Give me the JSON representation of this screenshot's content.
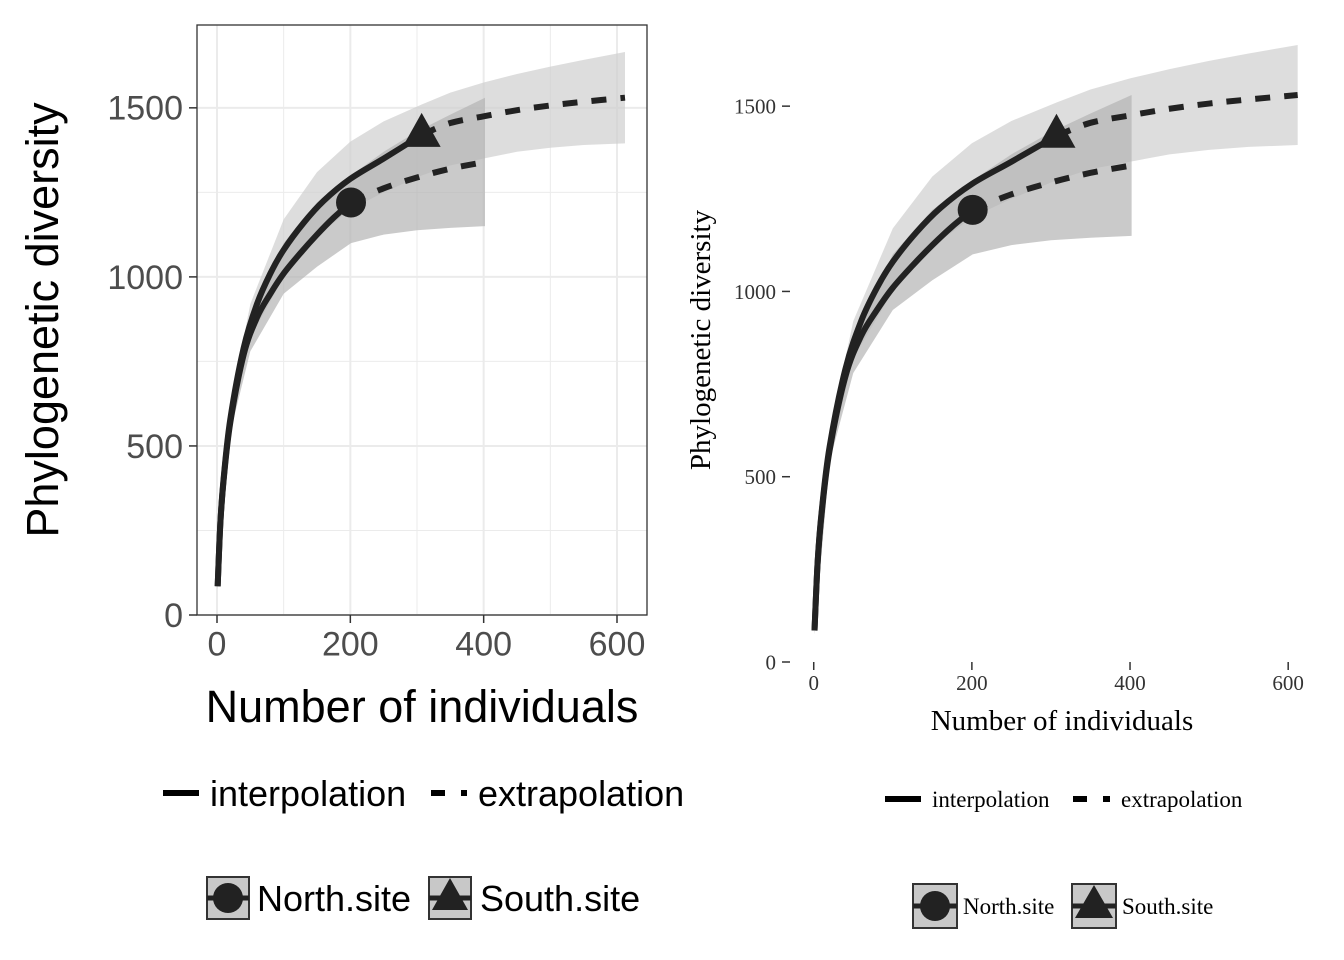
{
  "colors": {
    "line": "#222222",
    "band_light": "#e0e0e0",
    "band_dark": "#bdbdbd",
    "grid": "#ebebeb",
    "axis_text": "#4d4d4d"
  },
  "legend": {
    "method_interp": "interpolation",
    "method_extrap": "extrapolation",
    "site_north": "North.site",
    "site_south": "South.site"
  },
  "chart_data": [
    {
      "type": "line",
      "theme": "bw",
      "xlabel": "Number of individuals",
      "ylabel": "Phylogenetic diversity",
      "xlim": [
        -30,
        645
      ],
      "ylim": [
        0,
        1745
      ],
      "xticks": [
        0,
        200,
        400,
        600
      ],
      "yticks": [
        0,
        500,
        1000,
        1500
      ],
      "xtick_labels": [
        "0",
        "200",
        "400",
        "600"
      ],
      "ytick_labels": [
        "0",
        "500",
        "1000",
        "1500"
      ],
      "grid": true,
      "legend_position": "bottom",
      "series": [
        {
          "name": "North.site",
          "marker": "circle",
          "observed": [
            201,
            1220
          ],
          "interpolation": [
            [
              1,
              85
            ],
            [
              5,
              270
            ],
            [
              10,
              400
            ],
            [
              20,
              570
            ],
            [
              40,
              770
            ],
            [
              60,
              880
            ],
            [
              80,
              950
            ],
            [
              100,
              1010
            ],
            [
              125,
              1070
            ],
            [
              150,
              1125
            ],
            [
              175,
              1175
            ],
            [
              201,
              1220
            ]
          ],
          "extrapolation": [
            [
              201,
              1220
            ],
            [
              250,
              1262
            ],
            [
              300,
              1294
            ],
            [
              350,
              1320
            ],
            [
              402,
              1340
            ]
          ],
          "ci_upper": [
            [
              1,
              95
            ],
            [
              20,
              600
            ],
            [
              50,
              880
            ],
            [
              100,
              1100
            ],
            [
              150,
              1220
            ],
            [
              201,
              1300
            ],
            [
              250,
              1370
            ],
            [
              300,
              1430
            ],
            [
              350,
              1480
            ],
            [
              402,
              1530
            ]
          ],
          "ci_lower": [
            [
              1,
              75
            ],
            [
              20,
              540
            ],
            [
              50,
              780
            ],
            [
              100,
              950
            ],
            [
              150,
              1030
            ],
            [
              201,
              1100
            ],
            [
              250,
              1125
            ],
            [
              300,
              1138
            ],
            [
              350,
              1145
            ],
            [
              402,
              1150
            ]
          ]
        },
        {
          "name": "South.site",
          "marker": "triangle",
          "observed": [
            307,
            1420
          ],
          "interpolation": [
            [
              1,
              85
            ],
            [
              5,
              272
            ],
            [
              10,
              405
            ],
            [
              20,
              580
            ],
            [
              40,
              790
            ],
            [
              60,
              920
            ],
            [
              80,
              1010
            ],
            [
              100,
              1080
            ],
            [
              130,
              1160
            ],
            [
              160,
              1225
            ],
            [
              200,
              1290
            ],
            [
              250,
              1350
            ],
            [
              307,
              1420
            ]
          ],
          "extrapolation": [
            [
              307,
              1420
            ],
            [
              350,
              1455
            ],
            [
              400,
              1475
            ],
            [
              450,
              1493
            ],
            [
              500,
              1507
            ],
            [
              550,
              1518
            ],
            [
              612,
              1530
            ]
          ],
          "ci_upper": [
            [
              1,
              95
            ],
            [
              20,
              620
            ],
            [
              50,
              920
            ],
            [
              100,
              1170
            ],
            [
              150,
              1310
            ],
            [
              200,
              1400
            ],
            [
              250,
              1460
            ],
            [
              307,
              1510
            ],
            [
              350,
              1545
            ],
            [
              400,
              1575
            ],
            [
              450,
              1600
            ],
            [
              500,
              1622
            ],
            [
              550,
              1642
            ],
            [
              612,
              1665
            ]
          ],
          "ci_lower": [
            [
              1,
              75
            ],
            [
              20,
              550
            ],
            [
              50,
              820
            ],
            [
              100,
              1000
            ],
            [
              150,
              1120
            ],
            [
              200,
              1200
            ],
            [
              250,
              1250
            ],
            [
              307,
              1300
            ],
            [
              350,
              1330
            ],
            [
              400,
              1350
            ],
            [
              450,
              1370
            ],
            [
              500,
              1382
            ],
            [
              550,
              1390
            ],
            [
              612,
              1395
            ]
          ]
        }
      ]
    },
    {
      "type": "line",
      "theme": "classic",
      "xlabel": "Number of individuals",
      "ylabel": "Phylogenetic diversity",
      "xlim": [
        -30,
        620
      ],
      "ylim": [
        0,
        1665
      ],
      "xticks": [
        0,
        200,
        400,
        600
      ],
      "yticks": [
        0,
        500,
        1000,
        1500
      ],
      "xtick_labels": [
        "0",
        "200",
        "400",
        "600"
      ],
      "ytick_labels": [
        "0",
        "500",
        "1000",
        "1500"
      ],
      "grid": false,
      "legend_position": "bottom",
      "series": [
        {
          "name": "North.site",
          "marker": "circle",
          "observed": [
            201,
            1220
          ],
          "interpolation": [
            [
              1,
              85
            ],
            [
              5,
              270
            ],
            [
              10,
              400
            ],
            [
              20,
              570
            ],
            [
              40,
              770
            ],
            [
              60,
              880
            ],
            [
              80,
              950
            ],
            [
              100,
              1010
            ],
            [
              125,
              1070
            ],
            [
              150,
              1125
            ],
            [
              175,
              1175
            ],
            [
              201,
              1220
            ]
          ],
          "extrapolation": [
            [
              201,
              1220
            ],
            [
              250,
              1262
            ],
            [
              300,
              1294
            ],
            [
              350,
              1320
            ],
            [
              402,
              1340
            ]
          ],
          "ci_upper": [
            [
              1,
              95
            ],
            [
              20,
              600
            ],
            [
              50,
              880
            ],
            [
              100,
              1100
            ],
            [
              150,
              1220
            ],
            [
              201,
              1300
            ],
            [
              250,
              1370
            ],
            [
              300,
              1430
            ],
            [
              350,
              1480
            ],
            [
              402,
              1530
            ]
          ],
          "ci_lower": [
            [
              1,
              75
            ],
            [
              20,
              540
            ],
            [
              50,
              780
            ],
            [
              100,
              950
            ],
            [
              150,
              1030
            ],
            [
              201,
              1100
            ],
            [
              250,
              1125
            ],
            [
              300,
              1138
            ],
            [
              350,
              1145
            ],
            [
              402,
              1150
            ]
          ]
        },
        {
          "name": "South.site",
          "marker": "triangle",
          "observed": [
            307,
            1420
          ],
          "interpolation": [
            [
              1,
              85
            ],
            [
              5,
              272
            ],
            [
              10,
              405
            ],
            [
              20,
              580
            ],
            [
              40,
              790
            ],
            [
              60,
              920
            ],
            [
              80,
              1010
            ],
            [
              100,
              1080
            ],
            [
              130,
              1160
            ],
            [
              160,
              1225
            ],
            [
              200,
              1290
            ],
            [
              250,
              1350
            ],
            [
              307,
              1420
            ]
          ],
          "extrapolation": [
            [
              307,
              1420
            ],
            [
              350,
              1455
            ],
            [
              400,
              1475
            ],
            [
              450,
              1493
            ],
            [
              500,
              1507
            ],
            [
              550,
              1518
            ],
            [
              612,
              1530
            ]
          ],
          "ci_upper": [
            [
              1,
              95
            ],
            [
              20,
              620
            ],
            [
              50,
              920
            ],
            [
              100,
              1170
            ],
            [
              150,
              1310
            ],
            [
              200,
              1400
            ],
            [
              250,
              1460
            ],
            [
              307,
              1510
            ],
            [
              350,
              1545
            ],
            [
              400,
              1575
            ],
            [
              450,
              1600
            ],
            [
              500,
              1622
            ],
            [
              550,
              1642
            ],
            [
              612,
              1665
            ]
          ],
          "ci_lower": [
            [
              1,
              75
            ],
            [
              20,
              550
            ],
            [
              50,
              820
            ],
            [
              100,
              1000
            ],
            [
              150,
              1120
            ],
            [
              200,
              1200
            ],
            [
              250,
              1250
            ],
            [
              307,
              1300
            ],
            [
              350,
              1330
            ],
            [
              400,
              1350
            ],
            [
              450,
              1370
            ],
            [
              500,
              1382
            ],
            [
              550,
              1390
            ],
            [
              612,
              1395
            ]
          ]
        }
      ]
    }
  ]
}
